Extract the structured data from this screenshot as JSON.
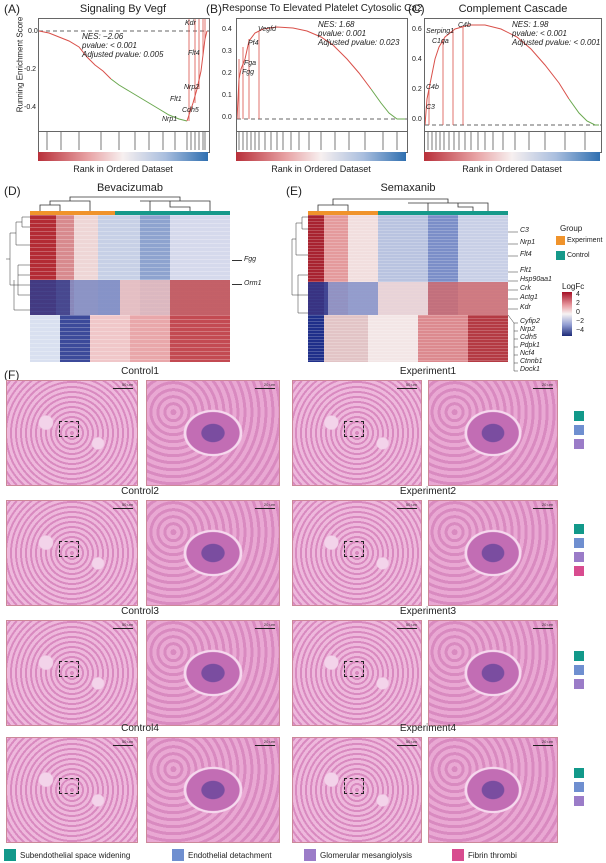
{
  "gsea": [
    {
      "letter": "(A)",
      "title": "Signaling By Vegf",
      "nes": "NES: −2.06",
      "pvalue": "pvalue: < 0.001",
      "adjusted": "Adjusted pvalue: 0.005",
      "genes": [
        "Kdr",
        "Flt4",
        "Nrp2",
        "Cdh5",
        "Flt1",
        "Nrp1"
      ],
      "rank_label": "Rank in Ordered Dataset",
      "ylabel": "Running Enrichment Score",
      "yticks": [
        "0.0",
        "-0.2",
        "-0.4"
      ]
    },
    {
      "letter": "(B)",
      "title": "Response To Elevated Platelet Cytosolic Ca2",
      "nes": "NES: 1.68",
      "pvalue": "pvalue: 0.001",
      "adjusted": "Adjusted pvalue: 0.023",
      "genes": [
        "Vegfd",
        "Pf4",
        "Fga",
        "Fgg"
      ],
      "rank_label": "Rank in Ordered Dataset",
      "yticks": [
        "0.4",
        "0.3",
        "0.2",
        "0.1",
        "0.0"
      ]
    },
    {
      "letter": "(C)",
      "title": "Complement Cascade",
      "nes": "NES: 1.98",
      "pvalue": "pvalue: < 0.001",
      "adjusted": "Adjusted pvalue: < 0.001",
      "genes": [
        "Serping1",
        "C1qa",
        "C4b",
        "C3"
      ],
      "gene_top": "C4b",
      "rank_label": "Rank in Ordered Dataset",
      "yticks": [
        "0.6",
        "0.4",
        "0.2",
        "0.0"
      ]
    }
  ],
  "heatmaps": [
    {
      "letter": "(D)",
      "title": "Bevacizumab",
      "genes": [
        "Fgg",
        "Orm1"
      ]
    },
    {
      "letter": "(E)",
      "title": "Semaxanib",
      "genes": [
        "C3",
        "Nrp1",
        "Flt4",
        "Flt1",
        "Hsp90aa1",
        "Crk",
        "Actg1",
        "Kdr",
        "Cyfip2",
        "Nrp2",
        "Cdh5",
        "Pdpk1",
        "Ncf4",
        "Ctnnb1",
        "Dock1"
      ]
    }
  ],
  "legend": {
    "group_title": "Group",
    "groups": [
      {
        "name": "Experiment",
        "color": "#f0932b"
      },
      {
        "name": "Control",
        "color": "#16998a"
      }
    ],
    "logfc_title": "LogFc",
    "logfc_ticks": [
      "4",
      "2",
      "0",
      "−2",
      "−4"
    ]
  },
  "panel_f": {
    "letter": "(F)",
    "controls": [
      "Control1",
      "Control2",
      "Control3",
      "Control4"
    ],
    "experiments": [
      "Experiment1",
      "Experiment2",
      "Experiment3",
      "Experiment4"
    ],
    "scale_large": "50 um",
    "scale_small": "20 um",
    "tags": [
      [
        "#12998a",
        "#6f8fd0",
        "#9b7cc8"
      ],
      [
        "#12998a",
        "#6f8fd0",
        "#9b7cc8",
        "#d84c8f"
      ],
      [
        "#12998a",
        "#6f8fd0",
        "#9b7cc8"
      ],
      [
        "#12998a",
        "#6f8fd0",
        "#9b7cc8"
      ]
    ],
    "bottom_legend": [
      {
        "label": "Subendothelial space widening",
        "color": "#12998a"
      },
      {
        "label": "Endothelial detachment",
        "color": "#6f8fd0"
      },
      {
        "label": "Glomerular mesangiolysis",
        "color": "#9b7cc8"
      },
      {
        "label": "Fibrin thrombi",
        "color": "#d84c8f"
      }
    ]
  }
}
